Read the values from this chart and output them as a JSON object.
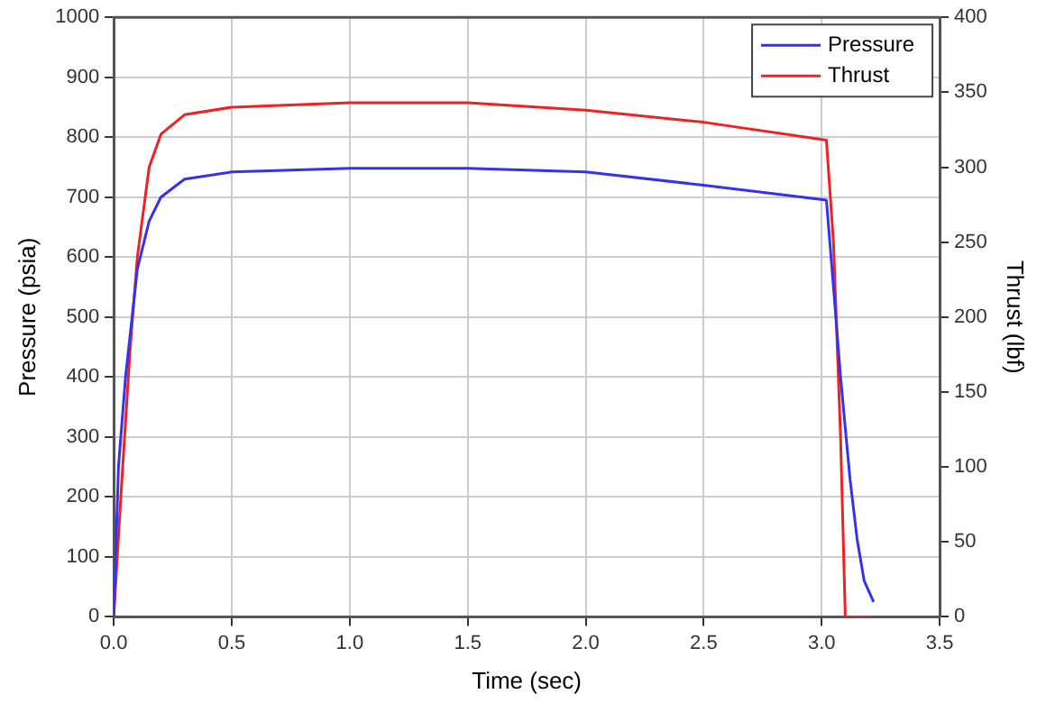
{
  "chart_data": {
    "type": "line",
    "xlabel": "Time (sec)",
    "ylabel": "Pressure (psia)",
    "y2label": "Thrust (lbf)",
    "xlim": [
      0,
      3.5
    ],
    "xticks": [
      {
        "value": 0,
        "label": "0.0"
      },
      {
        "value": 0.5,
        "label": "0.5"
      },
      {
        "value": 1,
        "label": "1.0"
      },
      {
        "value": 1.5,
        "label": "1.5"
      },
      {
        "value": 2,
        "label": "2.0"
      },
      {
        "value": 2.5,
        "label": "2.5"
      },
      {
        "value": 3,
        "label": "3.0"
      },
      {
        "value": 3.5,
        "label": "3.5"
      }
    ],
    "ylim": [
      0,
      1000
    ],
    "yticks": [
      0,
      100,
      200,
      300,
      400,
      500,
      600,
      700,
      800,
      900,
      1000
    ],
    "y2lim": [
      0,
      400
    ],
    "y2ticks": [
      0,
      50,
      100,
      150,
      200,
      250,
      300,
      350,
      400
    ],
    "grid": true,
    "legend": "top right",
    "marker": "none",
    "line_style": "solid",
    "series": [
      {
        "name": "Pressure",
        "color": "#3333ee",
        "x": [
          0,
          0.02,
          0.05,
          0.1,
          0.15,
          0.2,
          0.3,
          0.5,
          1.0,
          1.5,
          2.0,
          2.5,
          3.02,
          3.05,
          3.08,
          3.12,
          3.15,
          3.18,
          3.22
        ],
        "values": [
          0,
          250,
          400,
          580,
          660,
          700,
          730,
          742,
          748,
          748,
          742,
          720,
          695,
          550,
          400,
          230,
          130,
          60,
          25
        ]
      },
      {
        "name": "Thrust",
        "color": "#ee2222",
        "axis": "y2",
        "x": [
          0,
          0.03,
          0.07,
          0.1,
          0.15,
          0.2,
          0.3,
          0.5,
          1.0,
          1.5,
          2.0,
          2.5,
          3.02,
          3.05,
          3.08,
          3.1,
          3.22
        ],
        "values": [
          0,
          80,
          180,
          240,
          300,
          322,
          335,
          340,
          343,
          343,
          338,
          330,
          318,
          250,
          120,
          0,
          0
        ]
      }
    ]
  }
}
